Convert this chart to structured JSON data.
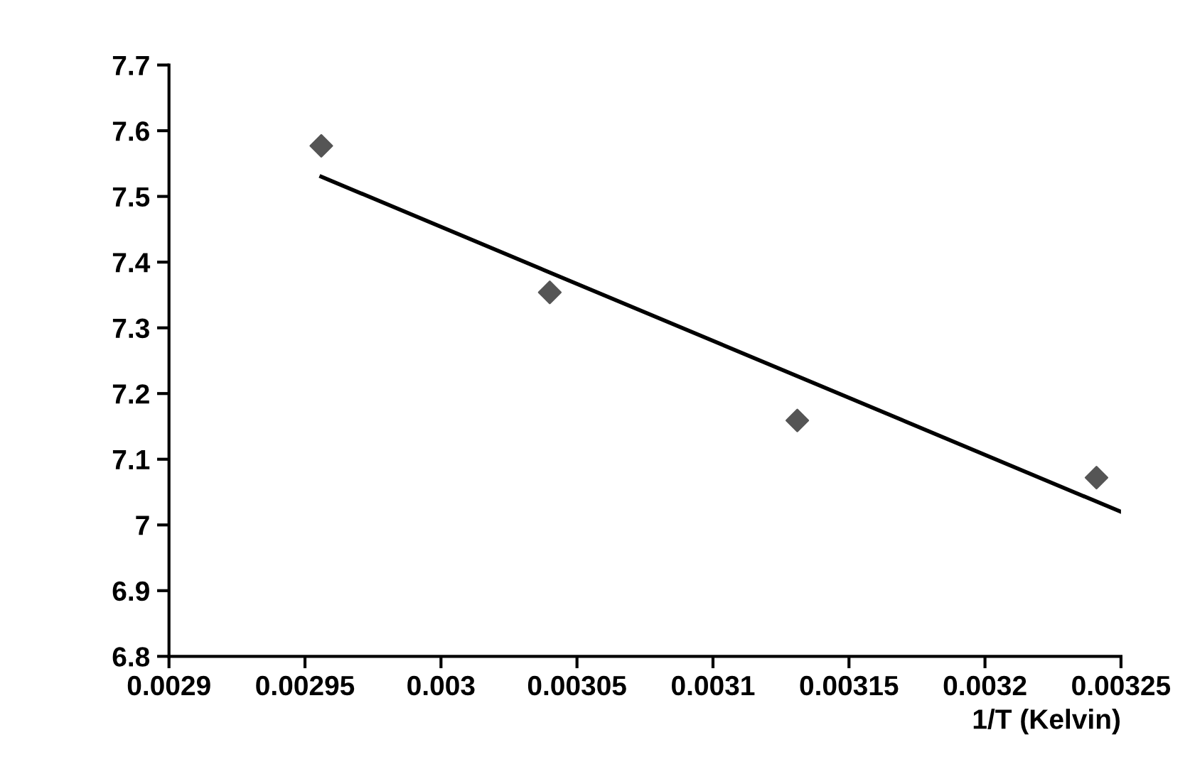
{
  "chart_data": {
    "type": "scatter",
    "xlabel": "1/T (Kelvin)",
    "xlim": [
      0.0029,
      0.00325
    ],
    "xticks": [
      0.0029,
      0.00295,
      0.003,
      0.00305,
      0.0031,
      0.00315,
      0.0032,
      0.00325
    ],
    "ylim": [
      6.8,
      7.7
    ],
    "yticks": [
      6.8,
      6.9,
      7,
      7.1,
      7.2,
      7.3,
      7.4,
      7.5,
      7.6,
      7.7
    ],
    "grid": false,
    "series": [
      {
        "marker": "diamond",
        "color": "#555555",
        "x": [
          0.002956,
          0.00304,
          0.003131,
          0.003241
        ],
        "values": [
          7.577,
          7.354,
          7.159,
          7.072
        ]
      },
      {
        "type": "line",
        "marker": "none",
        "line_style": "solid",
        "color": "#000000",
        "x": [
          0.002956,
          0.00325
        ],
        "values": [
          7.53,
          7.02
        ]
      }
    ]
  }
}
